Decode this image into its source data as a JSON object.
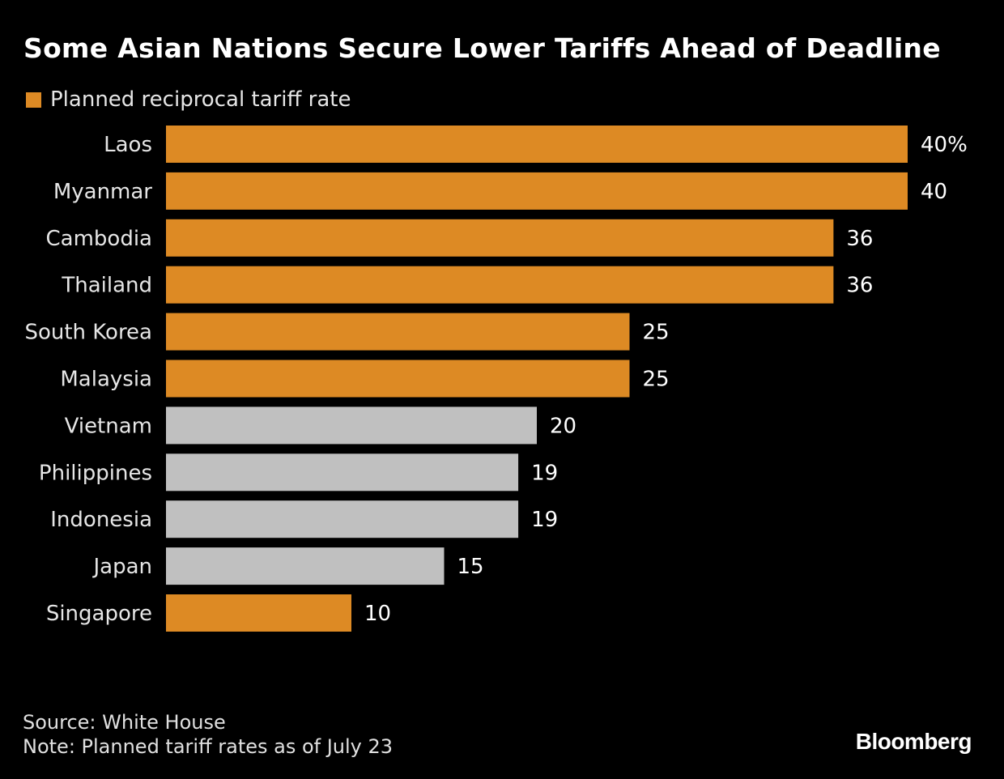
{
  "chart_data": {
    "type": "bar",
    "orientation": "horizontal",
    "title": "Some Asian Nations Secure Lower Tariffs Ahead of Deadline",
    "legend": [
      {
        "label": "Planned reciprocal tariff rate",
        "color": "#dd8a24"
      }
    ],
    "legend_placement": "top-left",
    "categories": [
      "Laos",
      "Myanmar",
      "Cambodia",
      "Thailand",
      "South Korea",
      "Malaysia",
      "Vietnam",
      "Philippines",
      "Indonesia",
      "Japan",
      "Singapore"
    ],
    "values": [
      40,
      40,
      36,
      36,
      25,
      25,
      20,
      19,
      19,
      15,
      10
    ],
    "value_labels": [
      "40%",
      "40",
      "36",
      "36",
      "25",
      "25",
      "20",
      "19",
      "19",
      "15",
      "10"
    ],
    "highlight": [
      true,
      true,
      true,
      true,
      true,
      true,
      false,
      false,
      false,
      false,
      true
    ],
    "colors": {
      "highlight": "#dd8a24",
      "other": "#c0c0c0",
      "background": "#000000"
    },
    "xlim": [
      0,
      40
    ],
    "grid": false
  },
  "footer": {
    "source": "Source: White House",
    "note": "Note: Planned tariff rates as of July 23",
    "brand": "Bloomberg"
  }
}
